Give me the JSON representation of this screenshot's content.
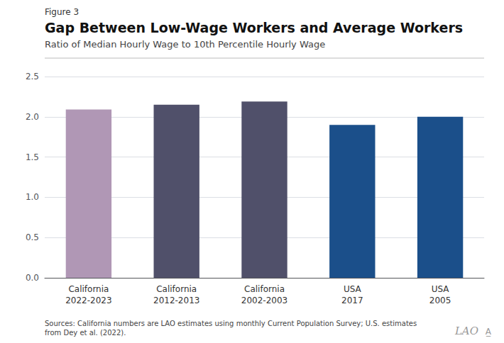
{
  "chart_data": {
    "type": "bar",
    "title": "Gap Between Low-Wage Workers and Average Workers",
    "subtitle": "Ratio of Median Hourly Wage to 10th Percentile Hourly Wage",
    "annotations": [
      "Figure 3",
      "Sources: California numbers are LAO estimates using monthly Current Population Survey; U.S. estimates from Dey et al. (2022).",
      "LAO",
      "A̲"
    ],
    "categories": [
      "California\n2022-2023",
      "California\n2012-2013",
      "California\n2002-2003",
      "USA\n2017",
      "USA\n2005"
    ],
    "values": [
      2.09,
      2.15,
      2.19,
      1.9,
      2.0
    ],
    "colors": [
      "#b097b5",
      "#50506a",
      "#50506a",
      "#1b4f8a",
      "#1b4f8a"
    ],
    "ylim": [
      0,
      2.5
    ],
    "yticks": [
      {
        "value": 0,
        "label": "0.0"
      },
      0.5,
      {
        "value": 1,
        "label": "1.0"
      },
      1.5,
      {
        "value": 2,
        "label": "2.0"
      },
      2.5
    ],
    "grid": true
  }
}
